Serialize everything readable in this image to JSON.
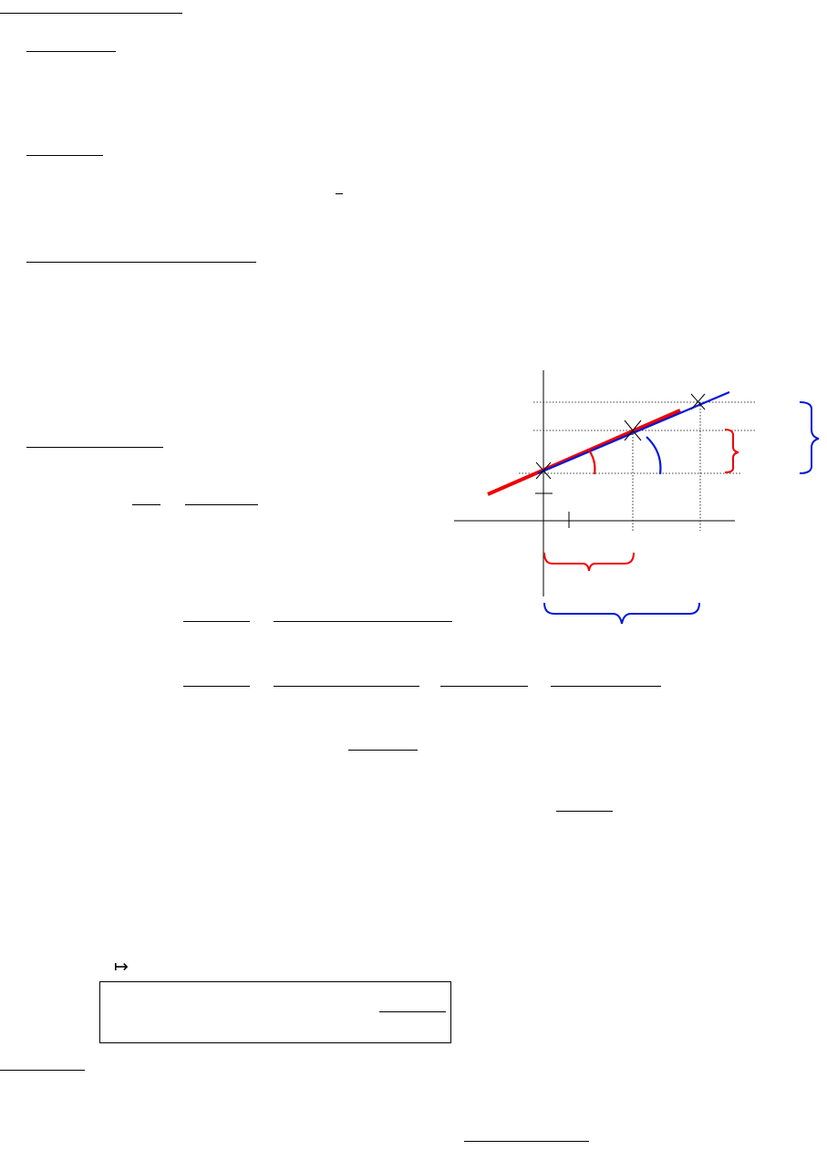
{
  "document": {
    "colors": {
      "ink": "#000000",
      "red": "#ee0000",
      "blue": "#0018d8"
    },
    "figure": {
      "description_icons": [
        "cross-marker",
        "cross-marker",
        "cross-marker"
      ],
      "secant_line_color": "red",
      "tangent_line_color": "blue"
    }
  }
}
